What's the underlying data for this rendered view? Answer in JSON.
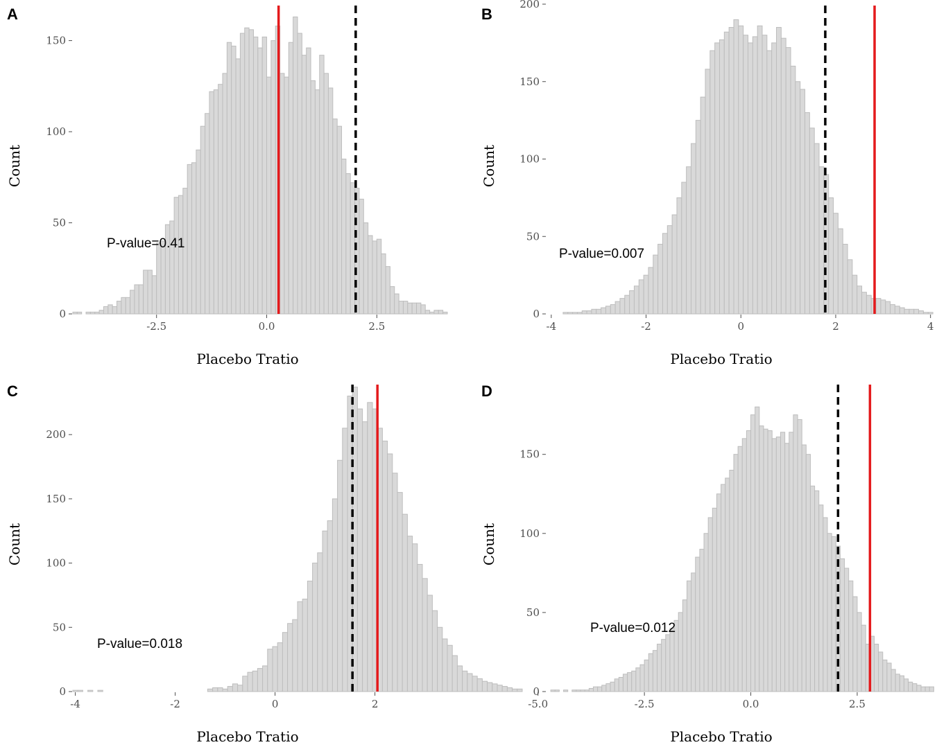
{
  "chart_data": [
    {
      "type": "bar",
      "panel_label": "A",
      "xlabel": "Placebo Tratio",
      "ylabel": "Count",
      "xlim": [
        -4.4,
        4.1
      ],
      "ylim": [
        0,
        170
      ],
      "xticks": [
        -2.5,
        0.0,
        2.5
      ],
      "xtick_labels": [
        "-2.5",
        "0.0",
        "2.5"
      ],
      "yticks": [
        0,
        50,
        100,
        150
      ],
      "ytick_labels": [
        "0",
        "50",
        "100",
        "150"
      ],
      "bin_start": -4.4,
      "bin_width": 0.1,
      "values": [
        1,
        1,
        0,
        1,
        1,
        1,
        2,
        4,
        5,
        4,
        7,
        9,
        9,
        13,
        16,
        16,
        24,
        24,
        21,
        39,
        40,
        49,
        51,
        64,
        65,
        69,
        82,
        83,
        90,
        103,
        110,
        122,
        123,
        126,
        132,
        149,
        147,
        140,
        154,
        157,
        156,
        152,
        146,
        152,
        130,
        150,
        158,
        132,
        130,
        149,
        163,
        154,
        142,
        146,
        128,
        123,
        142,
        132,
        124,
        107,
        103,
        85,
        77,
        72,
        69,
        63,
        50,
        43,
        40,
        41,
        33,
        26,
        15,
        11,
        7,
        7,
        6,
        6,
        6,
        5,
        2,
        1,
        2,
        2,
        1
      ],
      "reference_lines": [
        {
          "x": 0.27,
          "style": "solid",
          "color": "#e41a1c"
        },
        {
          "x": 2.02,
          "style": "dashed",
          "color": "#000000"
        }
      ],
      "annotation": "P-value=0.41",
      "grid": false
    },
    {
      "type": "bar",
      "panel_label": "B",
      "xlabel": "Placebo Tratio",
      "ylabel": "Count",
      "xlim": [
        -4.1,
        3.8
      ],
      "ylim": [
        0,
        200
      ],
      "xticks": [
        -4,
        -2,
        0,
        2,
        4
      ],
      "xtick_labels": [
        "-4",
        "-2",
        "0",
        "2",
        "4"
      ],
      "yticks": [
        0,
        50,
        100,
        150,
        200
      ],
      "ytick_labels": [
        "0",
        "50",
        "100",
        "150",
        "200"
      ],
      "bin_start": -3.75,
      "bin_width": 0.1,
      "values": [
        1,
        1,
        1,
        1,
        2,
        2,
        3,
        3,
        4,
        5,
        6,
        8,
        10,
        12,
        15,
        18,
        22,
        25,
        30,
        38,
        45,
        52,
        57,
        64,
        75,
        85,
        95,
        110,
        125,
        140,
        158,
        170,
        175,
        177,
        182,
        185,
        190,
        186,
        180,
        175,
        179,
        186,
        180,
        170,
        175,
        185,
        178,
        172,
        160,
        150,
        145,
        130,
        120,
        110,
        95,
        90,
        75,
        65,
        55,
        45,
        35,
        25,
        18,
        14,
        12,
        10,
        10,
        9,
        8,
        6,
        5,
        4,
        3,
        3,
        3,
        2,
        1,
        1
      ],
      "reference_lines": [
        {
          "x": 1.78,
          "style": "dashed",
          "color": "#000000"
        },
        {
          "x": 2.82,
          "style": "solid",
          "color": "#e41a1c"
        }
      ],
      "annotation": "P-value=0.007",
      "grid": false
    },
    {
      "type": "bar",
      "panel_label": "C",
      "xlabel": "Placebo Tratio",
      "ylabel": "Count",
      "xlim": [
        -4.05,
        3.45
      ],
      "ylim": [
        0,
        240
      ],
      "xticks": [
        -4,
        -2,
        0,
        2
      ],
      "xtick_labels": [
        "-4",
        "-2",
        "0",
        "2"
      ],
      "yticks": [
        0,
        50,
        100,
        150,
        200
      ],
      "ytick_labels": [
        "0",
        "50",
        "100",
        "150",
        "200"
      ],
      "bin_start": -4.05,
      "bin_width": 0.1,
      "values": [
        1,
        1,
        0,
        1,
        0,
        1,
        0,
        0,
        0,
        0,
        0,
        0,
        0,
        0,
        0,
        0,
        0,
        0,
        0,
        0,
        0,
        0,
        0,
        0,
        0,
        0,
        0,
        2,
        3,
        3,
        2,
        4,
        6,
        5,
        12,
        15,
        16,
        18,
        20,
        33,
        35,
        38,
        46,
        53,
        56,
        70,
        72,
        86,
        100,
        108,
        125,
        133,
        150,
        180,
        205,
        230,
        237,
        220,
        210,
        225,
        220,
        205,
        195,
        185,
        170,
        155,
        138,
        121,
        115,
        99,
        88,
        75,
        63,
        50,
        41,
        36,
        28,
        20,
        16,
        14,
        12,
        10,
        8,
        7,
        6,
        5,
        4,
        3,
        2,
        2
      ],
      "reference_lines": [
        {
          "x": 1.55,
          "style": "dashed",
          "color": "#000000"
        },
        {
          "x": 2.05,
          "style": "solid",
          "color": "#e41a1c"
        }
      ],
      "annotation": "P-value=0.018",
      "grid": false
    },
    {
      "type": "bar",
      "panel_label": "D",
      "xlabel": "Placebo Tratio",
      "ylabel": "Count",
      "xlim": [
        -4.8,
        4.0
      ],
      "ylim": [
        0,
        195
      ],
      "xticks": [
        -5.0,
        -2.5,
        0.0,
        2.5
      ],
      "xtick_labels": [
        "-5.0",
        "-2.5",
        "0.0",
        "2.5"
      ],
      "yticks": [
        0,
        50,
        100,
        150
      ],
      "ytick_labels": [
        "0",
        "50",
        "100",
        "150"
      ],
      "bin_start": -4.7,
      "bin_width": 0.1,
      "values": [
        1,
        1,
        0,
        1,
        0,
        1,
        1,
        1,
        1,
        2,
        3,
        3,
        4,
        5,
        6,
        8,
        9,
        11,
        12,
        13,
        15,
        17,
        20,
        24,
        26,
        30,
        33,
        36,
        40,
        45,
        50,
        58,
        70,
        75,
        85,
        90,
        100,
        110,
        116,
        125,
        131,
        135,
        140,
        150,
        155,
        160,
        165,
        175,
        180,
        168,
        166,
        165,
        160,
        161,
        164,
        157,
        164,
        175,
        172,
        156,
        150,
        130,
        127,
        118,
        110,
        100,
        98,
        92,
        84,
        78,
        70,
        60,
        50,
        42,
        30,
        35,
        30,
        25,
        20,
        18,
        14,
        11,
        10,
        8,
        6,
        5,
        4,
        3,
        3,
        3
      ],
      "reference_lines": [
        {
          "x": 2.05,
          "style": "dashed",
          "color": "#000000"
        },
        {
          "x": 2.8,
          "style": "solid",
          "color": "#e41a1c"
        }
      ],
      "annotation": "P-value=0.012",
      "grid": false
    }
  ]
}
